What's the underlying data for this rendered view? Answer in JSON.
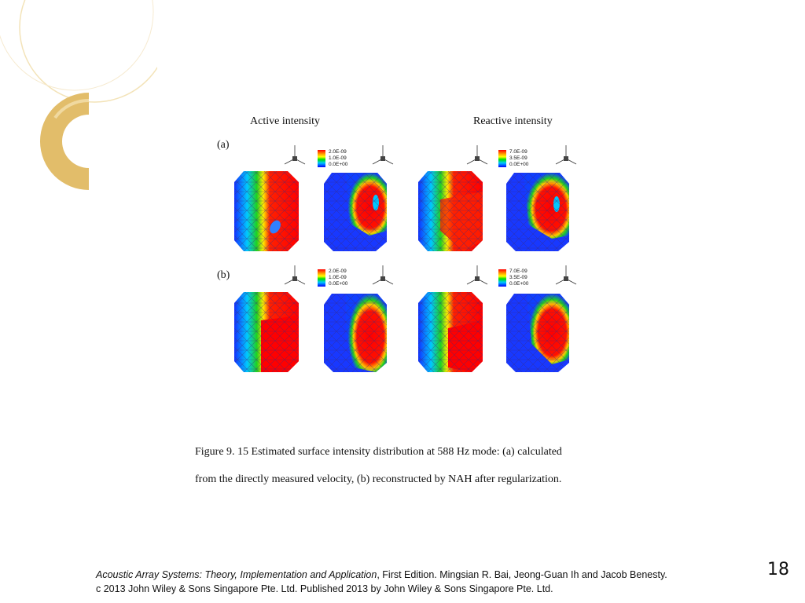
{
  "figure": {
    "column_headers": [
      "Active intensity",
      "Reactive intensity"
    ],
    "row_labels": [
      "(a)",
      "(b)"
    ],
    "legends": [
      {
        "values": [
          "2.0E-09",
          "1.0E-09",
          "0.0E+00"
        ]
      },
      {
        "values": [
          "7.0E-09",
          "3.5E-09",
          "0.0E+00"
        ]
      },
      {
        "values": [
          "2.0E-09",
          "1.0E-09",
          "0.0E+00"
        ]
      },
      {
        "values": [
          "7.0E-09",
          "3.5E-09",
          "0.0E+00"
        ]
      }
    ],
    "caption_line1": "Figure 9. 15 Estimated surface intensity distribution at 588 Hz mode: (a) calculated",
    "caption_line2": "from the directly measured velocity, (b) reconstructed by NAH after regularization."
  },
  "footer": {
    "book_title": "Acoustic Array Systems: Theory, Implementation and Application",
    "edition_authors": ", First Edition. Mingsian R. Bai, Jeong-Guan Ih and Jacob Benesty.",
    "copyright": "c 2013 John Wiley & Sons Singapore Pte. Ltd. Published 2013 by John Wiley & Sons Singapore Pte. Ltd."
  },
  "slide": {
    "page_number": "18"
  },
  "colors": {
    "accent_gold": "#e2bd6a",
    "accent_light": "#f3e3b8"
  }
}
